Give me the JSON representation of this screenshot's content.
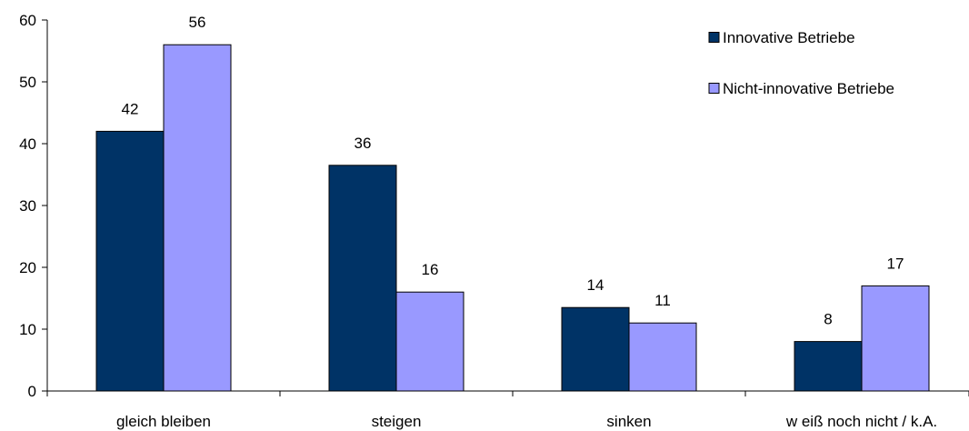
{
  "chart_data": {
    "type": "bar",
    "categories": [
      "gleich bleiben",
      "steigen",
      "sinken",
      "w eiß noch nicht / k.A."
    ],
    "series": [
      {
        "name": "Innovative Betriebe",
        "values": [
          42,
          36.5,
          13.5,
          8
        ],
        "labels": [
          "42",
          "36",
          "14",
          "8"
        ],
        "color": "#003366"
      },
      {
        "name": "Nicht-innovative Betriebe",
        "values": [
          56,
          16,
          11,
          17
        ],
        "labels": [
          "56",
          "16",
          "11",
          "17"
        ],
        "color": "#9999ff"
      }
    ],
    "yticks": [
      "0",
      "10",
      "20",
      "30",
      "40",
      "50",
      "60"
    ],
    "ylim": [
      0,
      60
    ],
    "grid": false,
    "legend_position": "top-right"
  }
}
